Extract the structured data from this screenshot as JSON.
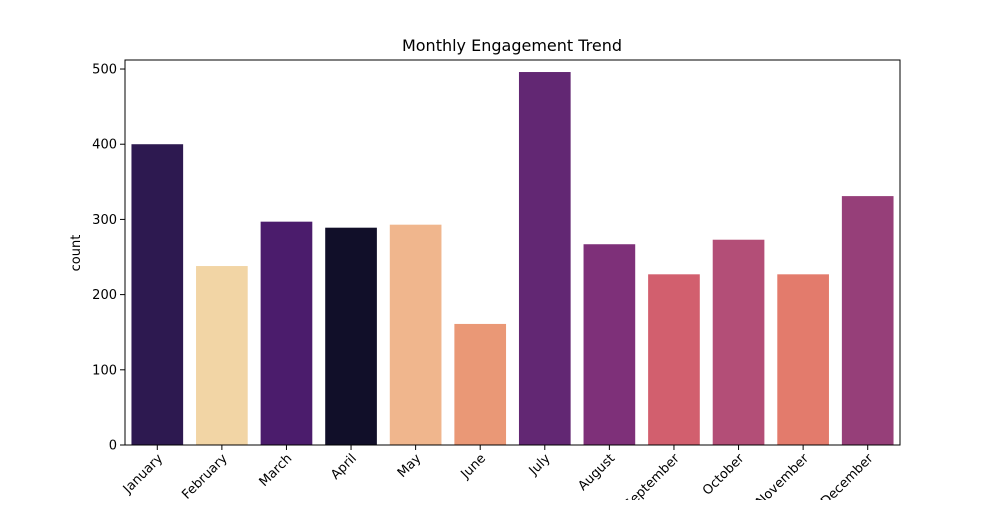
{
  "chart_data": {
    "type": "bar",
    "title": "Monthly Engagement Trend",
    "xlabel": "",
    "ylabel": "count",
    "categories": [
      "January",
      "February",
      "March",
      "April",
      "May",
      "June",
      "July",
      "August",
      "September",
      "October",
      "November",
      "December"
    ],
    "values": [
      400,
      238,
      297,
      289,
      293,
      161,
      496,
      267,
      227,
      273,
      227,
      331
    ],
    "colors": [
      "#2d1950",
      "#f2d5a5",
      "#4b1c6c",
      "#110f29",
      "#f0b68d",
      "#ea9876",
      "#622773",
      "#7e3079",
      "#d25f6e",
      "#b34e77",
      "#e37b6c",
      "#963f79"
    ],
    "ylim": [
      0,
      512
    ],
    "yticks": [
      0,
      100,
      200,
      300,
      400,
      500
    ],
    "grid": false,
    "legend": "none"
  }
}
